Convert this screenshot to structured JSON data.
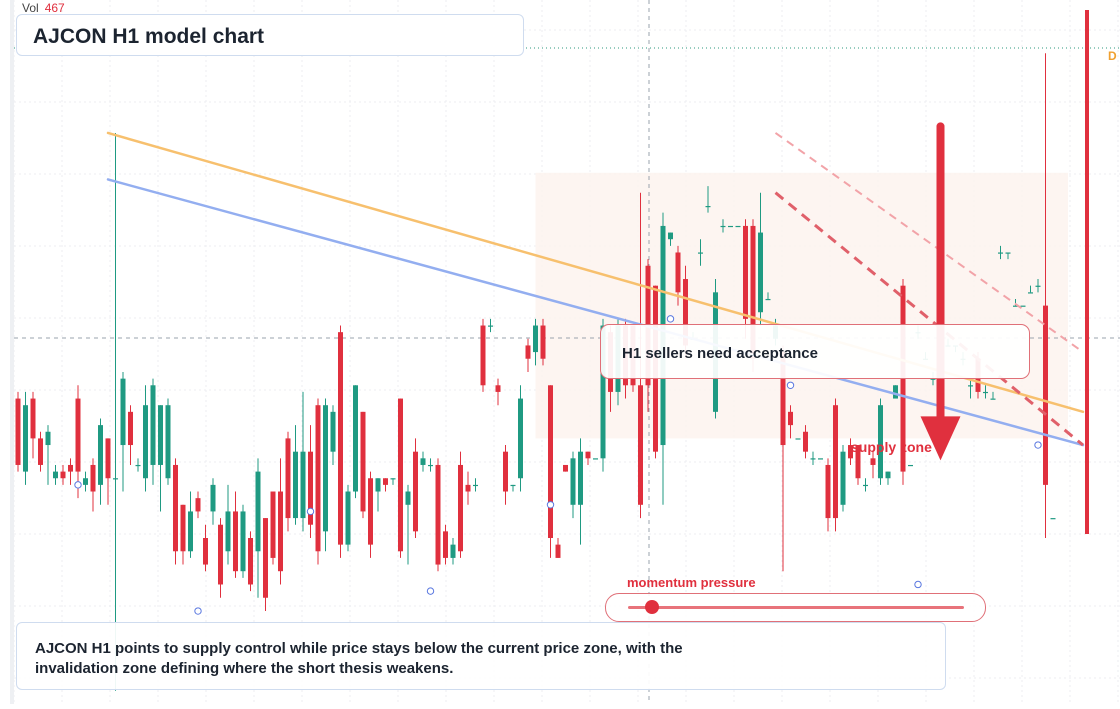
{
  "header": {
    "vol_label": "Vol",
    "vol_value": "467"
  },
  "title": "AJCON H1 model chart",
  "callout": "H1 sellers need acceptance",
  "zone_label": "supply zone",
  "momentum": {
    "label": "momentum pressure",
    "level": 0.07
  },
  "right_marker": "D",
  "summary": "AJCON H1 points to supply control while price stays below the current price zone, with the invalidation zone defining where the short thesis weakens.",
  "colors": {
    "up": "#1f9a82",
    "down": "#e0303e",
    "ema_fast": "#f7c06e",
    "ema_slow": "#93aef0",
    "target": "#f0a030"
  },
  "chart_data": {
    "type": "candlestick",
    "title": "AJCON H1 model chart",
    "ylim": [
      0,
      100
    ],
    "grid": true,
    "note": "no price axis printed; values on a normalized 0-100 scale",
    "candles": [
      {
        "o": 46,
        "c": 36,
        "h": 47,
        "l": 35
      },
      {
        "o": 35,
        "c": 45,
        "h": 47,
        "l": 33
      },
      {
        "o": 46,
        "c": 40,
        "h": 47,
        "l": 37
      },
      {
        "o": 40,
        "c": 36,
        "h": 41,
        "l": 35
      },
      {
        "o": 39,
        "c": 41,
        "h": 42,
        "l": 33
      },
      {
        "o": 34,
        "c": 35,
        "h": 36,
        "l": 33
      },
      {
        "o": 35,
        "c": 34,
        "h": 36,
        "l": 33
      },
      {
        "o": 36,
        "c": 35,
        "h": 37,
        "l": 33
      },
      {
        "o": 46,
        "c": 35,
        "h": 48,
        "l": 31
      },
      {
        "o": 33,
        "c": 34,
        "h": 35,
        "l": 32
      },
      {
        "o": 36,
        "c": 32,
        "h": 37,
        "l": 29
      },
      {
        "o": 33,
        "c": 42,
        "h": 43,
        "l": 30
      },
      {
        "o": 40,
        "c": 34,
        "h": 40,
        "l": 30
      },
      {
        "o": 34,
        "c": 34,
        "h": 86,
        "l": 2
      },
      {
        "o": 39,
        "c": 49,
        "h": 50,
        "l": 32
      },
      {
        "o": 44,
        "c": 39,
        "h": 45,
        "l": 36
      },
      {
        "o": 36,
        "c": 36,
        "h": 37,
        "l": 35
      },
      {
        "o": 34,
        "c": 45,
        "h": 48,
        "l": 32
      },
      {
        "o": 36,
        "c": 48,
        "h": 49,
        "l": 33
      },
      {
        "o": 36,
        "c": 45,
        "h": 45,
        "l": 29
      },
      {
        "o": 34,
        "c": 45,
        "h": 46,
        "l": 33
      },
      {
        "o": 36,
        "c": 23,
        "h": 37,
        "l": 21
      },
      {
        "o": 30,
        "c": 23,
        "h": 30,
        "l": 21
      },
      {
        "o": 23,
        "c": 29,
        "h": 32,
        "l": 22
      },
      {
        "o": 31,
        "c": 29,
        "h": 32,
        "l": 28
      },
      {
        "o": 25,
        "c": 21,
        "h": 27,
        "l": 20
      },
      {
        "o": 29,
        "c": 33,
        "h": 34,
        "l": 27
      },
      {
        "o": 27,
        "c": 18,
        "h": 28,
        "l": 16
      },
      {
        "o": 23,
        "c": 29,
        "h": 33,
        "l": 21
      },
      {
        "o": 29,
        "c": 20,
        "h": 32,
        "l": 19
      },
      {
        "o": 20,
        "c": 29,
        "h": 30,
        "l": 19
      },
      {
        "o": 25,
        "c": 18,
        "h": 26,
        "l": 17
      },
      {
        "o": 23,
        "c": 35,
        "h": 37,
        "l": 16
      },
      {
        "o": 28,
        "c": 16,
        "h": 28,
        "l": 14
      },
      {
        "o": 32,
        "c": 22,
        "h": 32,
        "l": 21
      },
      {
        "o": 32,
        "c": 20,
        "h": 37,
        "l": 18
      },
      {
        "o": 40,
        "c": 28,
        "h": 41,
        "l": 26
      },
      {
        "o": 28,
        "c": 38,
        "h": 42,
        "l": 27
      },
      {
        "o": 28,
        "c": 38,
        "h": 47,
        "l": 26
      },
      {
        "o": 38,
        "c": 27,
        "h": 42,
        "l": 25
      },
      {
        "o": 45,
        "c": 23,
        "h": 46,
        "l": 21
      },
      {
        "o": 26,
        "c": 45,
        "h": 46,
        "l": 23
      },
      {
        "o": 38,
        "c": 44,
        "h": 45,
        "l": 36
      },
      {
        "o": 56,
        "c": 24,
        "h": 57,
        "l": 22
      },
      {
        "o": 24,
        "c": 32,
        "h": 33,
        "l": 23
      },
      {
        "o": 32,
        "c": 48,
        "h": 48,
        "l": 31
      },
      {
        "o": 44,
        "c": 29,
        "h": 44,
        "l": 28
      },
      {
        "o": 34,
        "c": 24,
        "h": 35,
        "l": 22
      },
      {
        "o": 32,
        "c": 34,
        "h": 34,
        "l": 29
      },
      {
        "o": 34,
        "c": 33,
        "h": 34,
        "l": 32
      },
      {
        "o": 34,
        "c": 34,
        "h": 34,
        "l": 33
      },
      {
        "o": 46,
        "c": 23,
        "h": 46,
        "l": 22
      },
      {
        "o": 30,
        "c": 32,
        "h": 33,
        "l": 21
      },
      {
        "o": 38,
        "c": 26,
        "h": 40,
        "l": 25
      },
      {
        "o": 36,
        "c": 37,
        "h": 38,
        "l": 35
      },
      {
        "o": 36,
        "c": 36,
        "h": 37,
        "l": 35
      },
      {
        "o": 36,
        "c": 21,
        "h": 37,
        "l": 20
      },
      {
        "o": 26,
        "c": 22,
        "h": 27,
        "l": 21
      },
      {
        "o": 22,
        "c": 24,
        "h": 25,
        "l": 21
      },
      {
        "o": 36,
        "c": 23,
        "h": 38,
        "l": 22
      },
      {
        "o": 33,
        "c": 32,
        "h": 35,
        "l": 30
      },
      {
        "o": 33,
        "c": 33,
        "h": 34,
        "l": 32
      },
      {
        "o": 57,
        "c": 48,
        "h": 58,
        "l": 47
      },
      {
        "o": 57,
        "c": 57,
        "h": 58,
        "l": 56
      },
      {
        "o": 48,
        "c": 47,
        "h": 49,
        "l": 45
      },
      {
        "o": 38,
        "c": 32,
        "h": 39,
        "l": 30
      },
      {
        "o": 33,
        "c": 33,
        "h": 33,
        "l": 32
      },
      {
        "o": 34,
        "c": 46,
        "h": 48,
        "l": 32
      },
      {
        "o": 54,
        "c": 52,
        "h": 55,
        "l": 50
      },
      {
        "o": 53,
        "c": 57,
        "h": 58,
        "l": 51
      },
      {
        "o": 57,
        "c": 52,
        "h": 58,
        "l": 51
      },
      {
        "o": 48,
        "c": 25,
        "h": 48,
        "l": 22
      },
      {
        "o": 24,
        "c": 22,
        "h": 25,
        "l": 22
      },
      {
        "o": 36,
        "c": 35,
        "h": 36,
        "l": 35
      },
      {
        "o": 30,
        "c": 37,
        "h": 38,
        "l": 28
      },
      {
        "o": 30,
        "c": 38,
        "h": 40,
        "l": 24
      },
      {
        "o": 38,
        "c": 37,
        "h": 38,
        "l": 36
      },
      {
        "o": 37,
        "c": 37,
        "h": 37,
        "l": 37
      },
      {
        "o": 37,
        "c": 57,
        "h": 58,
        "l": 35
      },
      {
        "o": 56,
        "c": 47,
        "h": 57,
        "l": 44
      },
      {
        "o": 47,
        "c": 57,
        "h": 58,
        "l": 45
      },
      {
        "o": 57,
        "c": 48,
        "h": 58,
        "l": 46
      },
      {
        "o": 57,
        "c": 48,
        "h": 57,
        "l": 47
      },
      {
        "o": 48,
        "c": 30,
        "h": 77,
        "l": 28
      },
      {
        "o": 66,
        "c": 48,
        "h": 67,
        "l": 44
      },
      {
        "o": 63,
        "c": 38,
        "h": 63,
        "l": 37
      },
      {
        "o": 39,
        "c": 72,
        "h": 74,
        "l": 30
      },
      {
        "o": 70,
        "c": 71,
        "h": 71,
        "l": 69
      },
      {
        "o": 68,
        "c": 62,
        "h": 69,
        "l": 60
      },
      {
        "o": 64,
        "c": 54,
        "h": 66,
        "l": 52
      },
      {
        "o": 55,
        "c": 55,
        "h": 56,
        "l": 55
      },
      {
        "o": 68,
        "c": 68,
        "h": 70,
        "l": 66
      },
      {
        "o": 75,
        "c": 75,
        "h": 78,
        "l": 74
      },
      {
        "o": 44,
        "c": 62,
        "h": 64,
        "l": 43
      },
      {
        "o": 72,
        "c": 72,
        "h": 73,
        "l": 71
      },
      {
        "o": 72,
        "c": 72,
        "h": 72,
        "l": 72
      },
      {
        "o": 72,
        "c": 72,
        "h": 72,
        "l": 72
      },
      {
        "o": 72,
        "c": 58,
        "h": 73,
        "l": 55
      },
      {
        "o": 72,
        "c": 52,
        "h": 73,
        "l": 50
      },
      {
        "o": 59,
        "c": 71,
        "h": 77,
        "l": 57
      },
      {
        "o": 61,
        "c": 61,
        "h": 62,
        "l": 61
      },
      {
        "o": 55,
        "c": 57,
        "h": 58,
        "l": 54
      },
      {
        "o": 53,
        "c": 39,
        "h": 54,
        "l": 20
      },
      {
        "o": 44,
        "c": 42,
        "h": 45,
        "l": 40
      },
      {
        "o": 40,
        "c": 40,
        "h": 40,
        "l": 40
      },
      {
        "o": 41,
        "c": 38,
        "h": 42,
        "l": 37
      },
      {
        "o": 37,
        "c": 37,
        "h": 38,
        "l": 36
      },
      {
        "o": 37,
        "c": 37,
        "h": 37,
        "l": 37
      },
      {
        "o": 36,
        "c": 28,
        "h": 37,
        "l": 26
      },
      {
        "o": 45,
        "c": 28,
        "h": 46,
        "l": 26
      },
      {
        "o": 30,
        "c": 38,
        "h": 39,
        "l": 29
      },
      {
        "o": 39,
        "c": 37,
        "h": 40,
        "l": 36
      },
      {
        "o": 39,
        "c": 34,
        "h": 39,
        "l": 33
      },
      {
        "o": 33,
        "c": 33,
        "h": 34,
        "l": 32
      },
      {
        "o": 37,
        "c": 36,
        "h": 38,
        "l": 34
      },
      {
        "o": 34,
        "c": 45,
        "h": 46,
        "l": 33
      },
      {
        "o": 34,
        "c": 35,
        "h": 35,
        "l": 33
      },
      {
        "o": 46,
        "c": 48,
        "h": 48,
        "l": 46
      },
      {
        "o": 63,
        "c": 35,
        "h": 64,
        "l": 33
      },
      {
        "o": 36,
        "c": 36,
        "h": 36,
        "l": 36
      },
      {
        "o": 56,
        "c": 56,
        "h": 57,
        "l": 55
      },
      {
        "o": 52,
        "c": 52,
        "h": 53,
        "l": 52
      },
      {
        "o": 49,
        "c": 49,
        "h": 50,
        "l": 48
      },
      {
        "o": 50,
        "c": 50,
        "h": 51,
        "l": 50
      },
      {
        "o": 54,
        "c": 54,
        "h": 55,
        "l": 54
      },
      {
        "o": 54,
        "c": 54,
        "h": 54,
        "l": 53
      },
      {
        "o": 52,
        "c": 52,
        "h": 53,
        "l": 51
      },
      {
        "o": 48,
        "c": 48,
        "h": 49,
        "l": 46
      },
      {
        "o": 52,
        "c": 47,
        "h": 53,
        "l": 46
      },
      {
        "o": 47,
        "c": 47,
        "h": 48,
        "l": 46
      },
      {
        "o": 46,
        "c": 46,
        "h": 47,
        "l": 46
      },
      {
        "o": 68,
        "c": 68,
        "h": 69,
        "l": 67
      },
      {
        "o": 68,
        "c": 68,
        "h": 68,
        "l": 67
      },
      {
        "o": 60,
        "c": 60,
        "h": 61,
        "l": 60
      },
      {
        "o": 60,
        "c": 60,
        "h": 60,
        "l": 60
      },
      {
        "o": 62,
        "c": 62,
        "h": 63,
        "l": 62
      },
      {
        "o": 63,
        "c": 63,
        "h": 64,
        "l": 62
      },
      {
        "o": 60,
        "c": 33,
        "h": 98,
        "l": 25
      },
      {
        "o": 28,
        "c": 28,
        "h": 28,
        "l": 28
      }
    ],
    "series": [
      {
        "name": "",
        "type": "line",
        "color": "#f7c06e",
        "x0": 12,
        "x1": 142,
        "y0": 86,
        "y1": 44
      },
      {
        "name": "",
        "type": "line",
        "color": "#93aef0",
        "x0": 12,
        "x1": 142,
        "y0": 79,
        "y1": 39
      }
    ],
    "trendlines": [
      {
        "style": "dashed",
        "from": [
          101,
          77
        ],
        "to": [
          142,
          39
        ]
      },
      {
        "style": "dashed-light",
        "from": [
          101,
          86
        ],
        "to": [
          142,
          53
        ]
      }
    ],
    "zones": [
      {
        "label": "supply zone",
        "y_range": [
          40,
          80
        ]
      }
    ],
    "markers": [
      {
        "type": "down-arrow",
        "candle": 123,
        "from": 87,
        "to": 37
      }
    ]
  }
}
